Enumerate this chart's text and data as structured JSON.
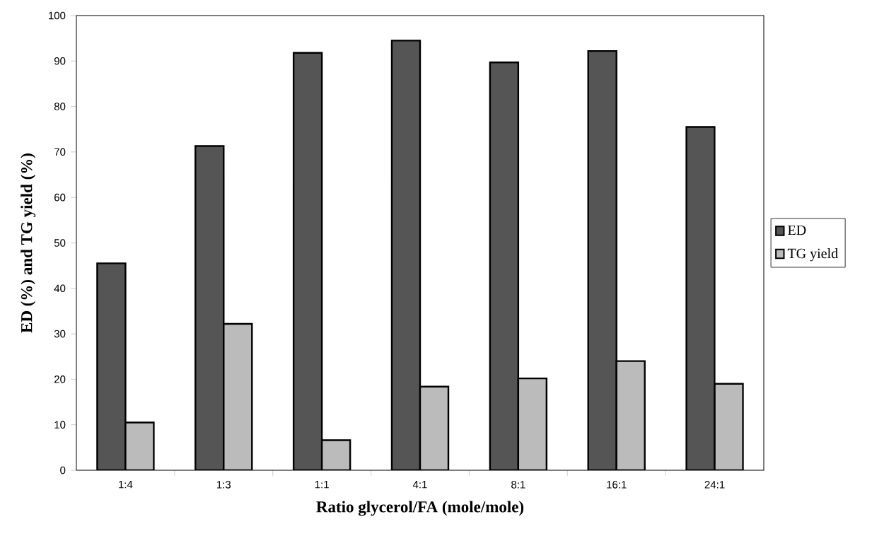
{
  "chart_data": {
    "type": "bar",
    "xlabel": "Ratio glycerol/FA (mole/mole)",
    "ylabel": "ED (%) and TG yield (%)",
    "categories": [
      "1:4",
      "1:3",
      "1:1",
      "4:1",
      "8:1",
      "16:1",
      "24:1"
    ],
    "series": [
      {
        "name": "ED",
        "color": "#555555",
        "values": [
          45.5,
          71.3,
          91.8,
          94.5,
          89.7,
          92.2,
          75.5
        ]
      },
      {
        "name": "TG yield",
        "color": "#bbbbbb",
        "values": [
          10.5,
          32.2,
          6.6,
          18.4,
          20.2,
          24.0,
          19.0
        ]
      }
    ],
    "ylim": [
      0,
      100
    ],
    "yticks": [
      0,
      10,
      20,
      30,
      40,
      50,
      60,
      70,
      80,
      90,
      100
    ],
    "legend": "right",
    "grid": false
  }
}
